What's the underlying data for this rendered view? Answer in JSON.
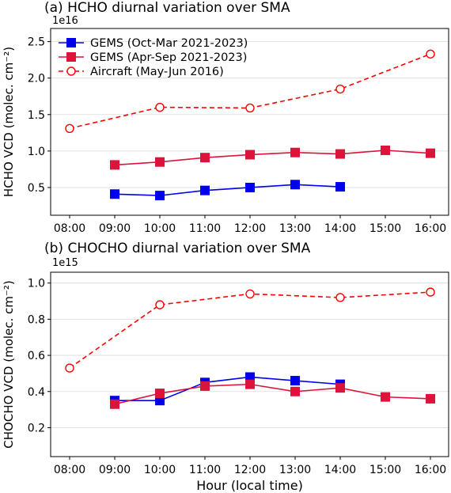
{
  "chart_data": [
    {
      "type": "line",
      "title": "(a) HCHO diurnal variation over SMA",
      "ylabel": "HCHO VCD (molec. cm⁻²)",
      "xlabel": "",
      "offset_label": "1e16",
      "categories": [
        "08:00",
        "09:00",
        "10:00",
        "11:00",
        "12:00",
        "13:00",
        "14:00",
        "15:00",
        "16:00"
      ],
      "ylim": [
        0.12,
        2.68
      ],
      "yticks": [
        0.5,
        1.0,
        1.5,
        2.0,
        2.5
      ],
      "ytick_labels": [
        "0.5",
        "1.0",
        "1.5",
        "2.0",
        "2.5"
      ],
      "grid": true,
      "legend": "top-left",
      "series": [
        {
          "name": "GEMS (Oct-Mar 2021-2023)",
          "color": "#0000ee",
          "marker": "square",
          "dash": false,
          "values": [
            null,
            0.41,
            0.39,
            0.46,
            0.5,
            0.54,
            0.51,
            null,
            null
          ]
        },
        {
          "name": "GEMS (Apr-Sep 2021-2023)",
          "color": "#dc143c",
          "marker": "square",
          "dash": false,
          "values": [
            null,
            0.81,
            0.85,
            0.91,
            0.95,
            0.98,
            0.96,
            1.01,
            0.97
          ]
        },
        {
          "name": "Aircraft (May-Jun 2016)",
          "color": "#ff0000",
          "marker": "circle",
          "dash": true,
          "values": [
            1.31,
            null,
            1.6,
            null,
            1.59,
            null,
            1.85,
            null,
            2.33
          ]
        }
      ]
    },
    {
      "type": "line",
      "title": "(b) CHOCHO diurnal variation over SMA",
      "ylabel": "CHOCHO VCD (molec. cm⁻²)",
      "xlabel": "Hour (local time)",
      "offset_label": "1e15",
      "categories": [
        "08:00",
        "09:00",
        "10:00",
        "11:00",
        "12:00",
        "13:00",
        "14:00",
        "15:00",
        "16:00"
      ],
      "ylim": [
        0.04,
        1.06
      ],
      "yticks": [
        0.2,
        0.4,
        0.6,
        0.8,
        1.0
      ],
      "ytick_labels": [
        "0.2",
        "0.4",
        "0.6",
        "0.8",
        "1.0"
      ],
      "grid": true,
      "series": [
        {
          "name": "GEMS (Oct-Mar 2021-2023)",
          "color": "#0000ee",
          "marker": "square",
          "dash": false,
          "values": [
            null,
            0.35,
            0.35,
            0.45,
            0.48,
            0.46,
            0.44,
            null,
            null
          ]
        },
        {
          "name": "GEMS (Apr-Sep 2021-2023)",
          "color": "#dc143c",
          "marker": "square",
          "dash": false,
          "values": [
            null,
            0.33,
            0.39,
            0.43,
            0.44,
            0.4,
            0.42,
            0.37,
            0.36
          ]
        },
        {
          "name": "Aircraft (May-Jun 2016)",
          "color": "#ff0000",
          "marker": "circle",
          "dash": true,
          "values": [
            0.53,
            null,
            0.88,
            null,
            0.94,
            null,
            0.92,
            null,
            0.95
          ]
        }
      ]
    }
  ]
}
